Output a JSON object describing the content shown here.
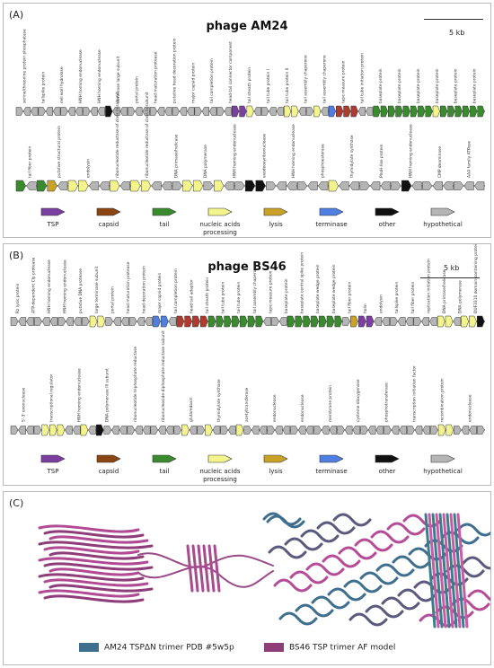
{
  "panels": [
    {
      "label": "(A)",
      "title": "phage AM24",
      "scale": "5 kb"
    },
    {
      "label": "(B)",
      "title": "phage BS46",
      "scale": "5 kb"
    },
    {
      "label": "(C)"
    }
  ],
  "legend": [
    {
      "key": "tsp",
      "label": "TSP",
      "color": "#7b3fa0"
    },
    {
      "key": "capsid",
      "label": "capsid",
      "color": "#8b4513"
    },
    {
      "key": "tail",
      "label": "tail",
      "color": "#3a8a2e"
    },
    {
      "key": "nucleic",
      "label": "nucleic acids processing",
      "color": "#f4f48c"
    },
    {
      "key": "lysis",
      "label": "lysis",
      "color": "#c9a227"
    },
    {
      "key": "terminase",
      "label": "terminase",
      "color": "#4f7fe0"
    },
    {
      "key": "other",
      "label": "other",
      "color": "#111111"
    },
    {
      "key": "hypothetical",
      "label": "hypothetical",
      "color": "#b5b5b5"
    }
  ],
  "genomes": {
    "am24_row1": [
      "h",
      "h",
      "h",
      "h",
      "h",
      "h",
      "h",
      "h",
      "h",
      "h",
      "h",
      "h",
      "o",
      "h",
      "h",
      "h",
      "h",
      "h",
      "h",
      "h",
      "h",
      "h",
      "h",
      "h",
      "h",
      "h",
      "h",
      "h",
      "h",
      "p",
      "p",
      "n",
      "h",
      "h",
      "h",
      "h",
      "n",
      "n",
      "h",
      "h",
      "n",
      "h",
      "b",
      "c",
      "c",
      "c",
      "h",
      "h",
      "t",
      "t",
      "t",
      "t",
      "t",
      "t",
      "t",
      "t",
      "n",
      "t",
      "t",
      "t",
      "t",
      "t",
      "t"
    ],
    "am24_row2": [
      "t",
      "h",
      "t",
      "l",
      "h",
      "n",
      "n",
      "h",
      "h",
      "n",
      "h",
      "n",
      "n",
      "h",
      "h",
      "h",
      "n",
      "n",
      "h",
      "n",
      "h",
      "h",
      "o",
      "o",
      "h",
      "h",
      "h",
      "h",
      "h",
      "h",
      "n",
      "h",
      "h",
      "h",
      "h",
      "h",
      "h",
      "o",
      "h",
      "h",
      "h",
      "h",
      "h",
      "h",
      "h"
    ],
    "bs46_row1": [
      "h",
      "h",
      "h",
      "h",
      "h",
      "h",
      "h",
      "h",
      "h",
      "h",
      "n",
      "n",
      "h",
      "h",
      "h",
      "h",
      "h",
      "h",
      "b",
      "b",
      "h",
      "c",
      "c",
      "c",
      "c",
      "t",
      "t",
      "t",
      "t",
      "t",
      "t",
      "t",
      "h",
      "h",
      "h",
      "t",
      "t",
      "t",
      "t",
      "t",
      "t",
      "t",
      "h",
      "l",
      "p",
      "p",
      "h",
      "h",
      "h",
      "h",
      "h",
      "h",
      "h",
      "h",
      "n",
      "n",
      "h",
      "n",
      "n",
      "o"
    ],
    "bs46_row2": [
      "h",
      "h",
      "h",
      "h",
      "n",
      "n",
      "n",
      "h",
      "h",
      "n",
      "h",
      "o",
      "h",
      "h",
      "h",
      "h",
      "h",
      "h",
      "h",
      "h",
      "h",
      "h",
      "n",
      "h",
      "h",
      "n",
      "h",
      "h",
      "h",
      "n",
      "h",
      "h",
      "h",
      "h",
      "h",
      "h",
      "h",
      "h",
      "h",
      "h",
      "h",
      "h",
      "h",
      "h",
      "h",
      "h",
      "h",
      "h",
      "h",
      "h",
      "h",
      "h",
      "h",
      "h",
      "h",
      "n",
      "n",
      "h",
      "h",
      "h",
      "h"
    ]
  },
  "gene_labels": {
    "am24_row1": [
      "serine/threonine protein phosphatase",
      "tailspike protein",
      "cell wall hydrolase",
      "HNH homing endonuclease",
      "HNH homing endonuclease",
      "terminase large subunit",
      "portal protein",
      "head maturation protease",
      "putative head decoration protein",
      "major capsid protein",
      "tail completion protein",
      "head-tail connector component",
      "tail sheath protein",
      "tail tube protein I",
      "tail tube protein II",
      "tail assembly chaperone",
      "tail assembly chaperone",
      "tape measure protein",
      "tail tube initiation protein",
      "baseplate protein",
      "baseplate protein",
      "baseplate protein",
      "baseplate protein",
      "baseplate protein",
      "baseplate protein"
    ],
    "am24_row2": [
      "tail fiber protein",
      "putative structural protein",
      "endolysin",
      "ribonucleotide reductase of class Ia subunit",
      "ribonucleotide reductase of class Ia subunit",
      "DNA primase/helicase",
      "DNA polymerase",
      "HNH homing endonuclease",
      "exodeoxyribonuclease",
      "HNH homing endonuclease",
      "phosphoesterase",
      "thymidylate synthase",
      "PhoH-like protein",
      "HNH homing endonuclease",
      "CMP deaminase",
      "AAA family ATPase"
    ],
    "bs46_row1": [
      "Rz lysis protein",
      "ATP-dependent Clp protease",
      "HNH homing endonuclease",
      "HNH homing endonuclease",
      "putative DNA protease",
      "large terminase subunit",
      "portal protein",
      "head maturation protease",
      "head decoration protein",
      "major capsid protein",
      "tail completion protein",
      "head tail adaptor",
      "tail sheath protein",
      "tail tube protein",
      "tail tube protein",
      "tail assembly chaperone",
      "tape measure protein",
      "baseplate protein",
      "baseplate central spike protein",
      "baseplate wedge protein",
      "baseplate wedge protein",
      "tail fiber protein",
      "holin",
      "endolysin",
      "tailspike protein",
      "tail fiber protein",
      "replication initiation protein",
      "DNA primase/helicase",
      "DNA polymerase",
      "DUF3310 domain-containing protein"
    ],
    "bs46_row2": [
      "5'-3' exonuclease",
      "transcriptional regulator",
      "HNH homing endonuclease",
      "DNA polymerase III subunit",
      "ribonucleotide triphosphate reductase",
      "ribonucleoside-diphosphate reductase subunit",
      "glutaredoxin",
      "thymidylate synthase",
      "acetyltransferase",
      "endonuclease",
      "endonuclease",
      "membrane protein",
      "cysteine dioxygenase",
      "phosphotransferase",
      "transcription initiation factor",
      "recombination protein",
      "endonuclease"
    ]
  },
  "model_legend": [
    {
      "label": "AM24 TSPΔN trimer PDB #5w5p",
      "color": "#3f6f8f"
    },
    {
      "label": "BS46 TSP trimer AF model",
      "color": "#8e3d78"
    }
  ]
}
